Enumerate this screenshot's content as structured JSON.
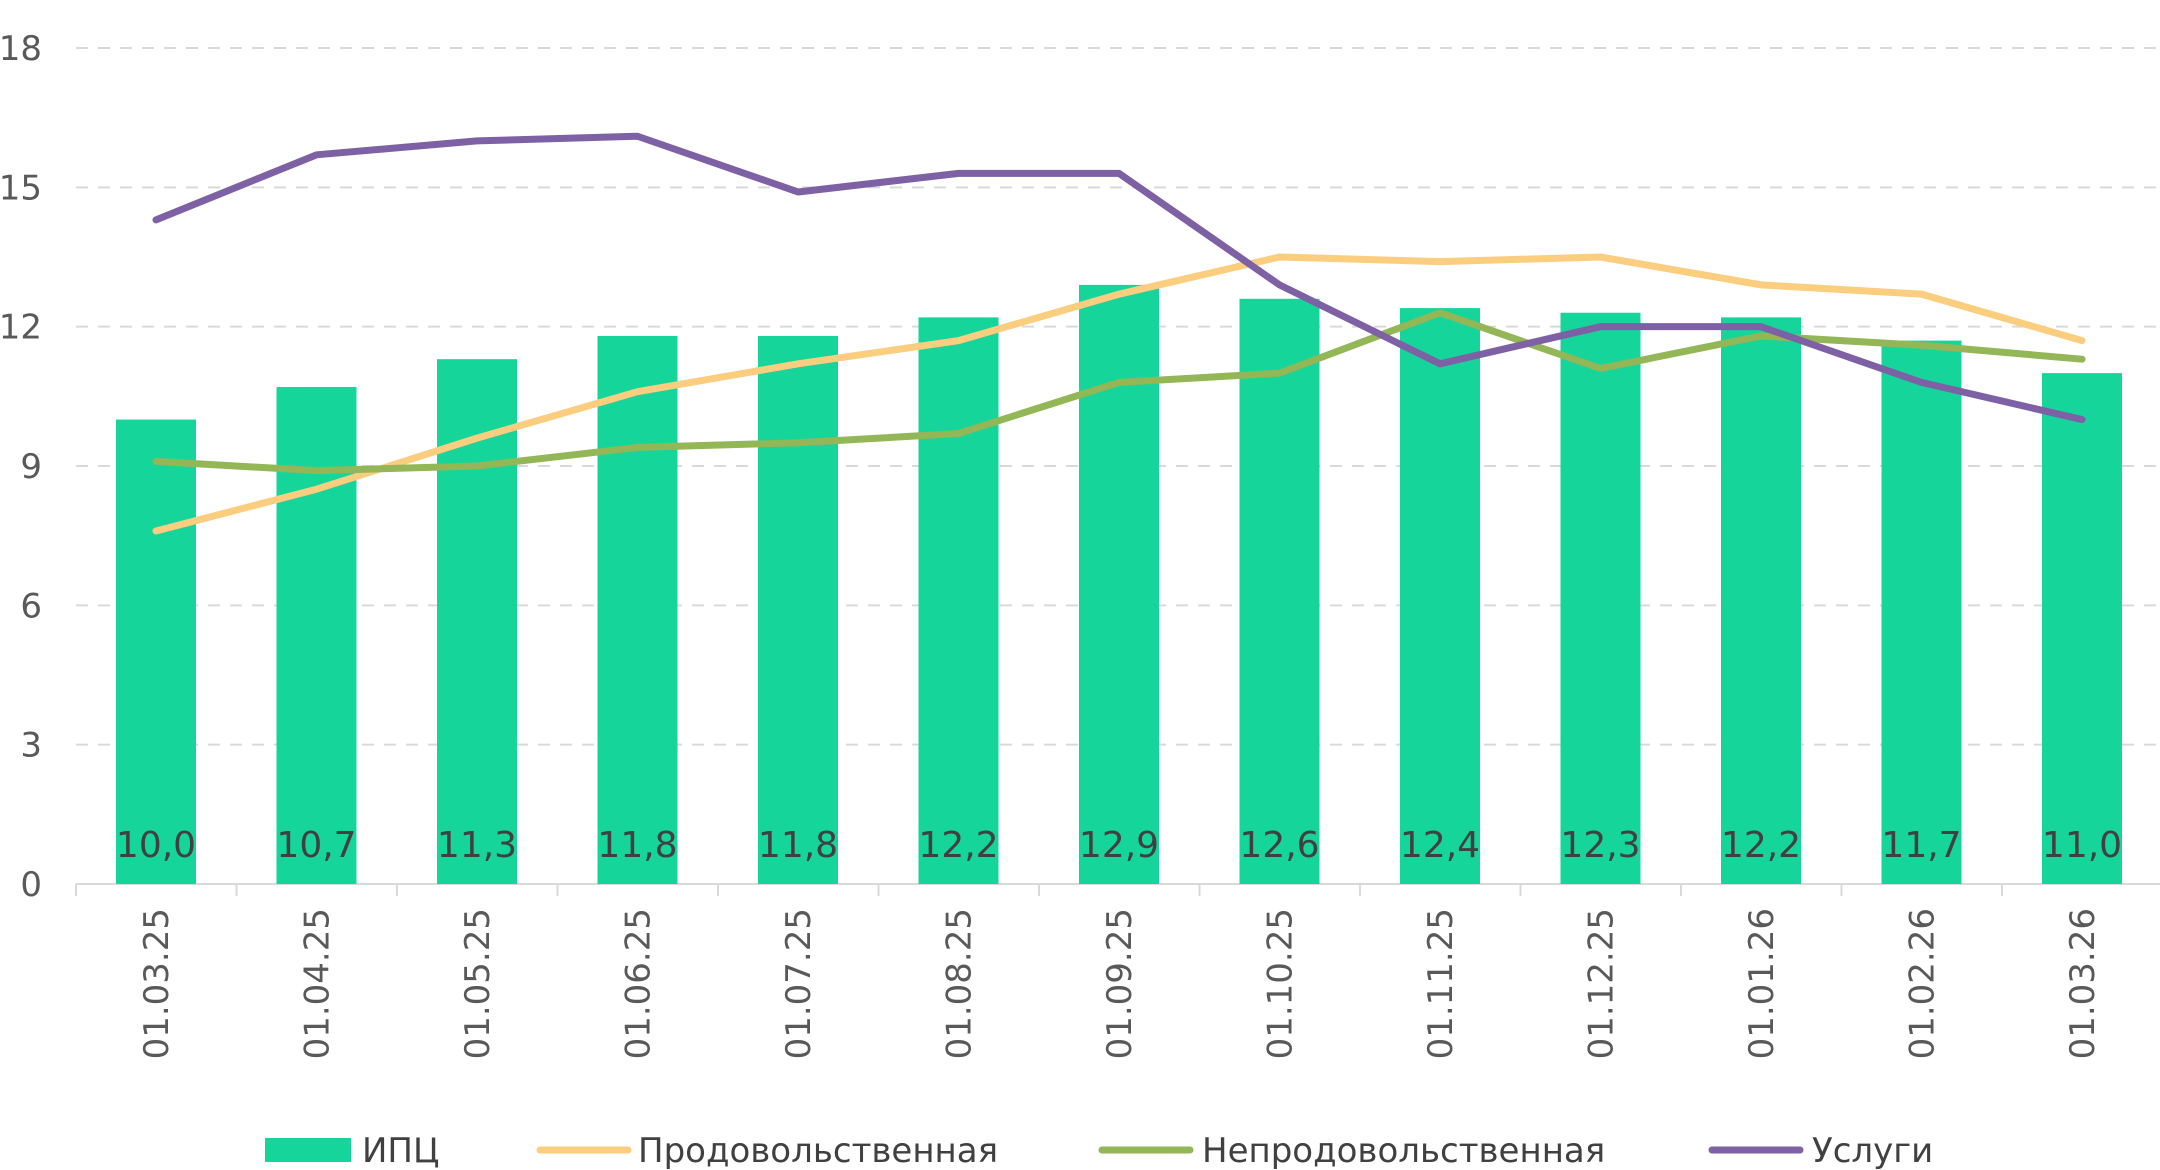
{
  "chart_data": {
    "type": "bar",
    "categories": [
      "01.03.25",
      "01.04.25",
      "01.05.25",
      "01.06.25",
      "01.07.25",
      "01.08.25",
      "01.09.25",
      "01.10.25",
      "01.11.25",
      "01.12.25",
      "01.01.26",
      "01.02.26",
      "01.03.26"
    ],
    "ylim": [
      0,
      18
    ],
    "yticks": [
      0,
      3,
      6,
      9,
      12,
      15,
      18
    ],
    "grid": true,
    "legend_position": "bottom",
    "bar_series": {
      "name": "ИПЦ",
      "color": "#15d59a",
      "values": [
        10.0,
        10.7,
        11.3,
        11.8,
        11.8,
        12.2,
        12.9,
        12.6,
        12.4,
        12.3,
        12.2,
        11.7,
        11.0
      ],
      "data_labels": [
        "10,0",
        "10,7",
        "11,3",
        "11,8",
        "11,8",
        "12,2",
        "12,9",
        "12,6",
        "12,4",
        "12,3",
        "12,2",
        "11,7",
        "11,0"
      ]
    },
    "line_series": [
      {
        "name": "Продовольственная",
        "color": "#fbcd7e",
        "values": [
          7.6,
          8.5,
          9.6,
          10.6,
          11.2,
          11.7,
          12.7,
          13.5,
          13.4,
          13.5,
          12.9,
          12.7,
          11.7
        ]
      },
      {
        "name": "Непродовольственная",
        "color": "#93b656",
        "values": [
          9.1,
          8.9,
          9.0,
          9.4,
          9.5,
          9.7,
          10.8,
          11.0,
          12.3,
          11.1,
          11.8,
          11.6,
          11.3
        ]
      },
      {
        "name": "Услуги",
        "color": "#7e61a4",
        "values": [
          14.3,
          15.7,
          16.0,
          16.1,
          14.9,
          15.3,
          15.3,
          12.9,
          11.2,
          12.0,
          12.0,
          10.8,
          10.0
        ]
      }
    ]
  }
}
